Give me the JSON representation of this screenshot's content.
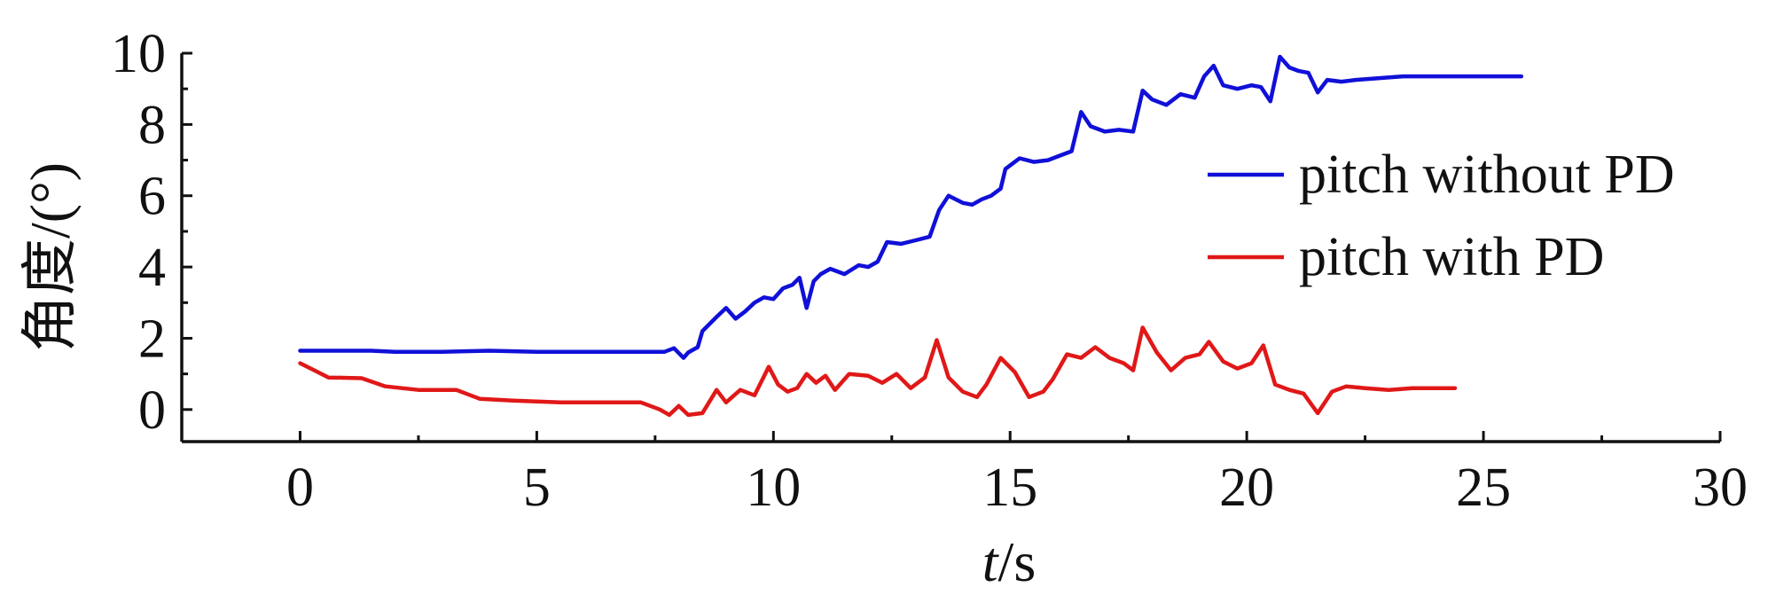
{
  "chart_data": {
    "type": "line",
    "xlabel_italic": "t",
    "xlabel_rest": "/s",
    "ylabel": "角度/(°)",
    "xlim": [
      -2.5,
      30
    ],
    "ylim": [
      -0.9,
      10
    ],
    "x_ticks": [
      0,
      5,
      10,
      15,
      20,
      25,
      30
    ],
    "y_ticks": [
      0,
      2,
      4,
      6,
      8,
      10
    ],
    "x_tick_labels": [
      "0",
      "5",
      "10",
      "15",
      "20",
      "25",
      "30"
    ],
    "y_tick_labels": [
      "0",
      "2",
      "4",
      "6",
      "8",
      "10"
    ],
    "grid": false,
    "legend_position": "right",
    "series": [
      {
        "name": "pitch without PD",
        "color": "#1010d8",
        "points": [
          [
            0,
            1.65
          ],
          [
            0.5,
            1.65
          ],
          [
            1.0,
            1.65
          ],
          [
            1.5,
            1.65
          ],
          [
            2.0,
            1.62
          ],
          [
            3.0,
            1.62
          ],
          [
            4.0,
            1.65
          ],
          [
            5.0,
            1.62
          ],
          [
            6.0,
            1.62
          ],
          [
            7.0,
            1.62
          ],
          [
            7.7,
            1.62
          ],
          [
            7.9,
            1.72
          ],
          [
            8.1,
            1.45
          ],
          [
            8.2,
            1.6
          ],
          [
            8.4,
            1.75
          ],
          [
            8.5,
            2.2
          ],
          [
            8.8,
            2.6
          ],
          [
            9.0,
            2.85
          ],
          [
            9.2,
            2.55
          ],
          [
            9.4,
            2.75
          ],
          [
            9.6,
            3.0
          ],
          [
            9.8,
            3.15
          ],
          [
            10.0,
            3.1
          ],
          [
            10.2,
            3.4
          ],
          [
            10.4,
            3.5
          ],
          [
            10.55,
            3.7
          ],
          [
            10.7,
            2.85
          ],
          [
            10.85,
            3.6
          ],
          [
            11.0,
            3.8
          ],
          [
            11.2,
            3.95
          ],
          [
            11.5,
            3.8
          ],
          [
            11.8,
            4.05
          ],
          [
            12.0,
            4.0
          ],
          [
            12.2,
            4.15
          ],
          [
            12.4,
            4.7
          ],
          [
            12.7,
            4.65
          ],
          [
            13.0,
            4.75
          ],
          [
            13.3,
            4.85
          ],
          [
            13.5,
            5.6
          ],
          [
            13.7,
            6.0
          ],
          [
            14.0,
            5.8
          ],
          [
            14.2,
            5.75
          ],
          [
            14.4,
            5.9
          ],
          [
            14.6,
            6.0
          ],
          [
            14.8,
            6.2
          ],
          [
            14.9,
            6.75
          ],
          [
            15.2,
            7.05
          ],
          [
            15.5,
            6.95
          ],
          [
            15.8,
            7.0
          ],
          [
            16.1,
            7.15
          ],
          [
            16.3,
            7.25
          ],
          [
            16.5,
            8.35
          ],
          [
            16.7,
            7.95
          ],
          [
            17.0,
            7.8
          ],
          [
            17.3,
            7.85
          ],
          [
            17.6,
            7.8
          ],
          [
            17.8,
            8.95
          ],
          [
            18.0,
            8.7
          ],
          [
            18.3,
            8.55
          ],
          [
            18.6,
            8.85
          ],
          [
            18.9,
            8.75
          ],
          [
            19.1,
            9.35
          ],
          [
            19.3,
            9.65
          ],
          [
            19.5,
            9.1
          ],
          [
            19.8,
            9.0
          ],
          [
            20.1,
            9.1
          ],
          [
            20.3,
            9.05
          ],
          [
            20.5,
            8.65
          ],
          [
            20.7,
            9.9
          ],
          [
            20.9,
            9.6
          ],
          [
            21.1,
            9.5
          ],
          [
            21.3,
            9.45
          ],
          [
            21.5,
            8.9
          ],
          [
            21.7,
            9.25
          ],
          [
            22.0,
            9.2
          ],
          [
            22.3,
            9.25
          ],
          [
            22.8,
            9.3
          ],
          [
            23.3,
            9.35
          ],
          [
            24.0,
            9.35
          ],
          [
            25.0,
            9.35
          ],
          [
            25.8,
            9.35
          ]
        ]
      },
      {
        "name": "pitch with PD",
        "color": "#e01818",
        "points": [
          [
            0,
            1.3
          ],
          [
            0.3,
            1.1
          ],
          [
            0.6,
            0.9
          ],
          [
            1.3,
            0.88
          ],
          [
            1.8,
            0.65
          ],
          [
            2.5,
            0.55
          ],
          [
            3.3,
            0.55
          ],
          [
            3.8,
            0.3
          ],
          [
            4.5,
            0.25
          ],
          [
            5.5,
            0.2
          ],
          [
            6.5,
            0.2
          ],
          [
            7.2,
            0.2
          ],
          [
            7.6,
            0.0
          ],
          [
            7.8,
            -0.15
          ],
          [
            8.0,
            0.1
          ],
          [
            8.2,
            -0.15
          ],
          [
            8.5,
            -0.1
          ],
          [
            8.8,
            0.55
          ],
          [
            9.0,
            0.2
          ],
          [
            9.3,
            0.55
          ],
          [
            9.6,
            0.4
          ],
          [
            9.9,
            1.2
          ],
          [
            10.1,
            0.7
          ],
          [
            10.3,
            0.5
          ],
          [
            10.5,
            0.6
          ],
          [
            10.7,
            1.0
          ],
          [
            10.9,
            0.75
          ],
          [
            11.1,
            0.95
          ],
          [
            11.3,
            0.55
          ],
          [
            11.6,
            1.0
          ],
          [
            12.0,
            0.95
          ],
          [
            12.3,
            0.75
          ],
          [
            12.6,
            1.0
          ],
          [
            12.9,
            0.6
          ],
          [
            13.2,
            0.9
          ],
          [
            13.45,
            1.95
          ],
          [
            13.7,
            0.9
          ],
          [
            14.0,
            0.5
          ],
          [
            14.3,
            0.35
          ],
          [
            14.5,
            0.7
          ],
          [
            14.8,
            1.45
          ],
          [
            15.1,
            1.05
          ],
          [
            15.4,
            0.35
          ],
          [
            15.7,
            0.5
          ],
          [
            15.9,
            0.85
          ],
          [
            16.2,
            1.55
          ],
          [
            16.5,
            1.45
          ],
          [
            16.8,
            1.75
          ],
          [
            17.1,
            1.45
          ],
          [
            17.4,
            1.3
          ],
          [
            17.6,
            1.1
          ],
          [
            17.8,
            2.3
          ],
          [
            18.1,
            1.6
          ],
          [
            18.4,
            1.1
          ],
          [
            18.7,
            1.45
          ],
          [
            19.0,
            1.55
          ],
          [
            19.2,
            1.9
          ],
          [
            19.5,
            1.35
          ],
          [
            19.8,
            1.15
          ],
          [
            20.1,
            1.3
          ],
          [
            20.35,
            1.8
          ],
          [
            20.6,
            0.7
          ],
          [
            20.9,
            0.55
          ],
          [
            21.2,
            0.45
          ],
          [
            21.5,
            -0.1
          ],
          [
            21.8,
            0.5
          ],
          [
            22.1,
            0.65
          ],
          [
            22.5,
            0.6
          ],
          [
            23.0,
            0.55
          ],
          [
            23.5,
            0.6
          ],
          [
            24.0,
            0.6
          ],
          [
            24.4,
            0.6
          ]
        ]
      }
    ]
  }
}
